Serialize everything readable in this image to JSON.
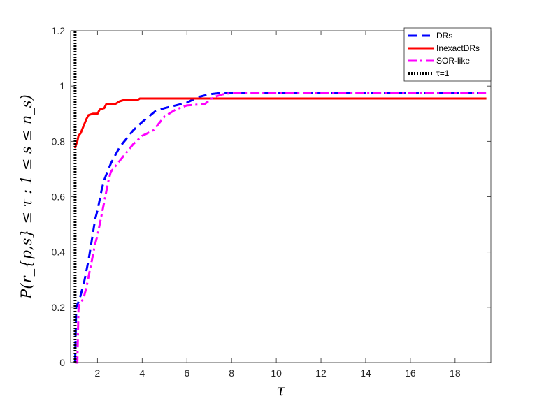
{
  "chart_data": {
    "type": "line",
    "xlabel": "τ",
    "ylabel": "P(r_{p,s} ≤ τ : 1 ≤ s ≤ n_s)",
    "xlim": [
      0.8,
      19.6
    ],
    "ylim": [
      0,
      1.2
    ],
    "xticks": [
      2,
      4,
      6,
      8,
      10,
      12,
      14,
      16,
      18
    ],
    "yticks": [
      0,
      0.2,
      0.4,
      0.6,
      0.8,
      1,
      1.2
    ],
    "xtick_labels": [
      "2",
      "4",
      "6",
      "8",
      "10",
      "12",
      "14",
      "16",
      "18"
    ],
    "ytick_labels": [
      "0",
      "0.2",
      "0.4",
      "0.6",
      "0.8",
      "1",
      "1.2"
    ],
    "grid": false,
    "legend_position": "top-right",
    "series": [
      {
        "name": "DRs",
        "color": "#0000ff",
        "style": "dashed",
        "points": [
          [
            1.0,
            0.0
          ],
          [
            1.05,
            0.2
          ],
          [
            1.1,
            0.21
          ],
          [
            1.2,
            0.23
          ],
          [
            1.3,
            0.26
          ],
          [
            1.4,
            0.29
          ],
          [
            1.5,
            0.33
          ],
          [
            1.6,
            0.37
          ],
          [
            1.7,
            0.42
          ],
          [
            1.8,
            0.47
          ],
          [
            1.9,
            0.52
          ],
          [
            2.0,
            0.55
          ],
          [
            2.1,
            0.59
          ],
          [
            2.2,
            0.63
          ],
          [
            2.3,
            0.66
          ],
          [
            2.4,
            0.68
          ],
          [
            2.5,
            0.7
          ],
          [
            2.6,
            0.72
          ],
          [
            2.8,
            0.75
          ],
          [
            3.0,
            0.78
          ],
          [
            3.3,
            0.81
          ],
          [
            3.6,
            0.84
          ],
          [
            4.0,
            0.87
          ],
          [
            4.3,
            0.89
          ],
          [
            4.6,
            0.91
          ],
          [
            5.0,
            0.92
          ],
          [
            5.5,
            0.93
          ],
          [
            6.0,
            0.94
          ],
          [
            6.5,
            0.96
          ],
          [
            7.0,
            0.97
          ],
          [
            7.5,
            0.975
          ],
          [
            8.0,
            0.975
          ],
          [
            19.4,
            0.975
          ]
        ]
      },
      {
        "name": "InexactDRs",
        "color": "#ff0000",
        "style": "solid",
        "points": [
          [
            1.0,
            0.775
          ],
          [
            1.05,
            0.79
          ],
          [
            1.1,
            0.8
          ],
          [
            1.15,
            0.82
          ],
          [
            1.25,
            0.83
          ],
          [
            1.4,
            0.86
          ],
          [
            1.5,
            0.88
          ],
          [
            1.6,
            0.895
          ],
          [
            1.8,
            0.9
          ],
          [
            2.0,
            0.9
          ],
          [
            2.1,
            0.915
          ],
          [
            2.3,
            0.92
          ],
          [
            2.4,
            0.935
          ],
          [
            2.8,
            0.935
          ],
          [
            3.0,
            0.945
          ],
          [
            3.2,
            0.95
          ],
          [
            3.8,
            0.95
          ],
          [
            3.9,
            0.955
          ],
          [
            19.4,
            0.955
          ]
        ]
      },
      {
        "name": "SOR-like",
        "color": "#ff00ff",
        "style": "dashdot",
        "points": [
          [
            1.0,
            0.0
          ],
          [
            1.1,
            0.0
          ],
          [
            1.15,
            0.19
          ],
          [
            1.2,
            0.21
          ],
          [
            1.3,
            0.22
          ],
          [
            1.4,
            0.24
          ],
          [
            1.5,
            0.27
          ],
          [
            1.6,
            0.31
          ],
          [
            1.7,
            0.35
          ],
          [
            1.8,
            0.39
          ],
          [
            1.9,
            0.43
          ],
          [
            2.0,
            0.46
          ],
          [
            2.1,
            0.5
          ],
          [
            2.2,
            0.54
          ],
          [
            2.3,
            0.58
          ],
          [
            2.4,
            0.62
          ],
          [
            2.5,
            0.66
          ],
          [
            2.6,
            0.69
          ],
          [
            2.8,
            0.71
          ],
          [
            3.0,
            0.73
          ],
          [
            3.3,
            0.76
          ],
          [
            3.6,
            0.79
          ],
          [
            4.0,
            0.82
          ],
          [
            4.5,
            0.84
          ],
          [
            5.0,
            0.89
          ],
          [
            5.5,
            0.915
          ],
          [
            6.0,
            0.93
          ],
          [
            6.8,
            0.935
          ],
          [
            7.2,
            0.96
          ],
          [
            7.6,
            0.97
          ],
          [
            8.0,
            0.975
          ],
          [
            19.4,
            0.975
          ]
        ]
      },
      {
        "name": "τ=1",
        "color": "#000000",
        "style": "dotted",
        "points": [
          [
            1.0,
            0.0
          ],
          [
            1.0,
            1.2
          ]
        ]
      }
    ]
  }
}
